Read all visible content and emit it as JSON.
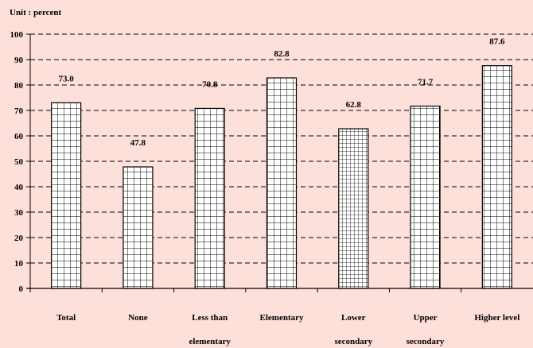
{
  "unit_label": "Unit : percent",
  "colors": {
    "background": "#fde0d9",
    "bar_fill": "#ffffff",
    "bar_stroke": "#000000"
  },
  "chart_data": {
    "type": "bar",
    "title": "",
    "xlabel": "",
    "ylabel": "",
    "ylim": [
      0,
      100
    ],
    "yticks": [
      0,
      10,
      20,
      30,
      40,
      50,
      60,
      70,
      80,
      90,
      100
    ],
    "grid": "horizontal dashed",
    "categories": [
      [
        "Total"
      ],
      [
        "None"
      ],
      [
        "Less than",
        "elementary"
      ],
      [
        "Elementary"
      ],
      [
        "Lower",
        "secondary"
      ],
      [
        "Upper",
        "secondary"
      ],
      [
        "Higher level"
      ]
    ],
    "values": [
      73.0,
      47.8,
      70.8,
      82.8,
      62.8,
      71.7,
      87.6
    ],
    "value_labels": [
      "73.0",
      "47.8",
      "70.8",
      "82.8",
      "62.8",
      "71.7",
      "87.6"
    ],
    "patterns": [
      "grid-coarse",
      "grid-coarse",
      "grid-coarse",
      "grid-coarse",
      "grid-fine",
      "grid-coarse",
      "grid-coarse"
    ]
  }
}
